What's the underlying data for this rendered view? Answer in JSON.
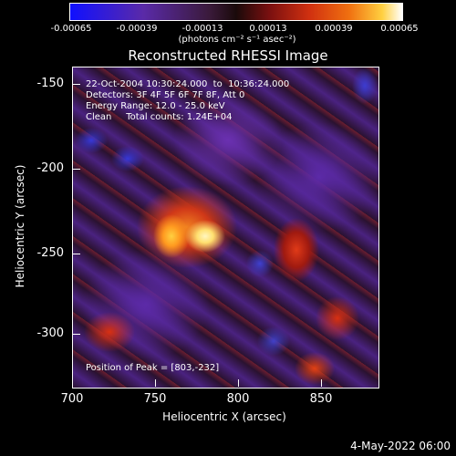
{
  "colorbar": {
    "ticks": [
      "-0.00065",
      "-0.00039",
      "-0.00013",
      "0.00013",
      "0.00039",
      "0.00065"
    ],
    "unit": "(photons cm⁻² s⁻¹ asec⁻²)"
  },
  "title": "Reconstructed RHESSI Image",
  "info": {
    "time": "22-Oct-2004 10:30:24.000  to  10:36:24.000",
    "detectors": "Detectors: 3F 4F 5F 6F 7F 8F, Att 0",
    "energy": "Energy Range: 12.0 - 25.0 keV",
    "clean": "Clean     Total counts: 1.24E+04",
    "peak": "Position of Peak = [803,-232]"
  },
  "axes": {
    "yticks": [
      "-150",
      "-200",
      "-250",
      "-300"
    ],
    "xticks": [
      "700",
      "750",
      "800",
      "850"
    ],
    "ylabel": "Heliocentric Y (arcsec)",
    "xlabel": "Heliocentric X (arcsec)"
  },
  "datestamp": "4-May-2022 06:00"
}
